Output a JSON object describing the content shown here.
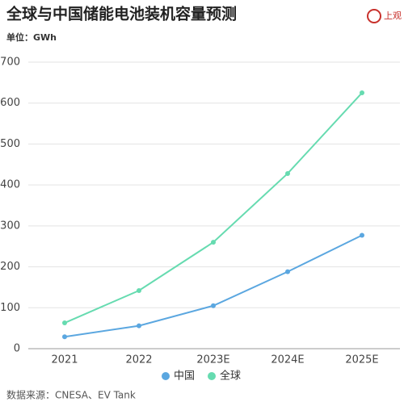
{
  "logo": "上观",
  "chart_data": {
    "type": "line",
    "title": "全球与中国储能电池装机容量预测",
    "subtitle": "单位：GWh",
    "source": "数据来源：CNESA、EV Tank",
    "categories": [
      "2021",
      "2022",
      "2023E",
      "2024E",
      "2025E"
    ],
    "series": [
      {
        "name": "中国",
        "color": "#5ba7e0",
        "values": [
          29,
          56,
          105,
          188,
          277
        ]
      },
      {
        "name": "全球",
        "color": "#66dbb0",
        "values": [
          63,
          142,
          260,
          428,
          625
        ]
      }
    ],
    "ylim": [
      0,
      700
    ],
    "yticks": [
      0,
      100,
      200,
      300,
      400,
      500,
      600,
      700
    ],
    "grid": true,
    "legend": "bottom"
  }
}
